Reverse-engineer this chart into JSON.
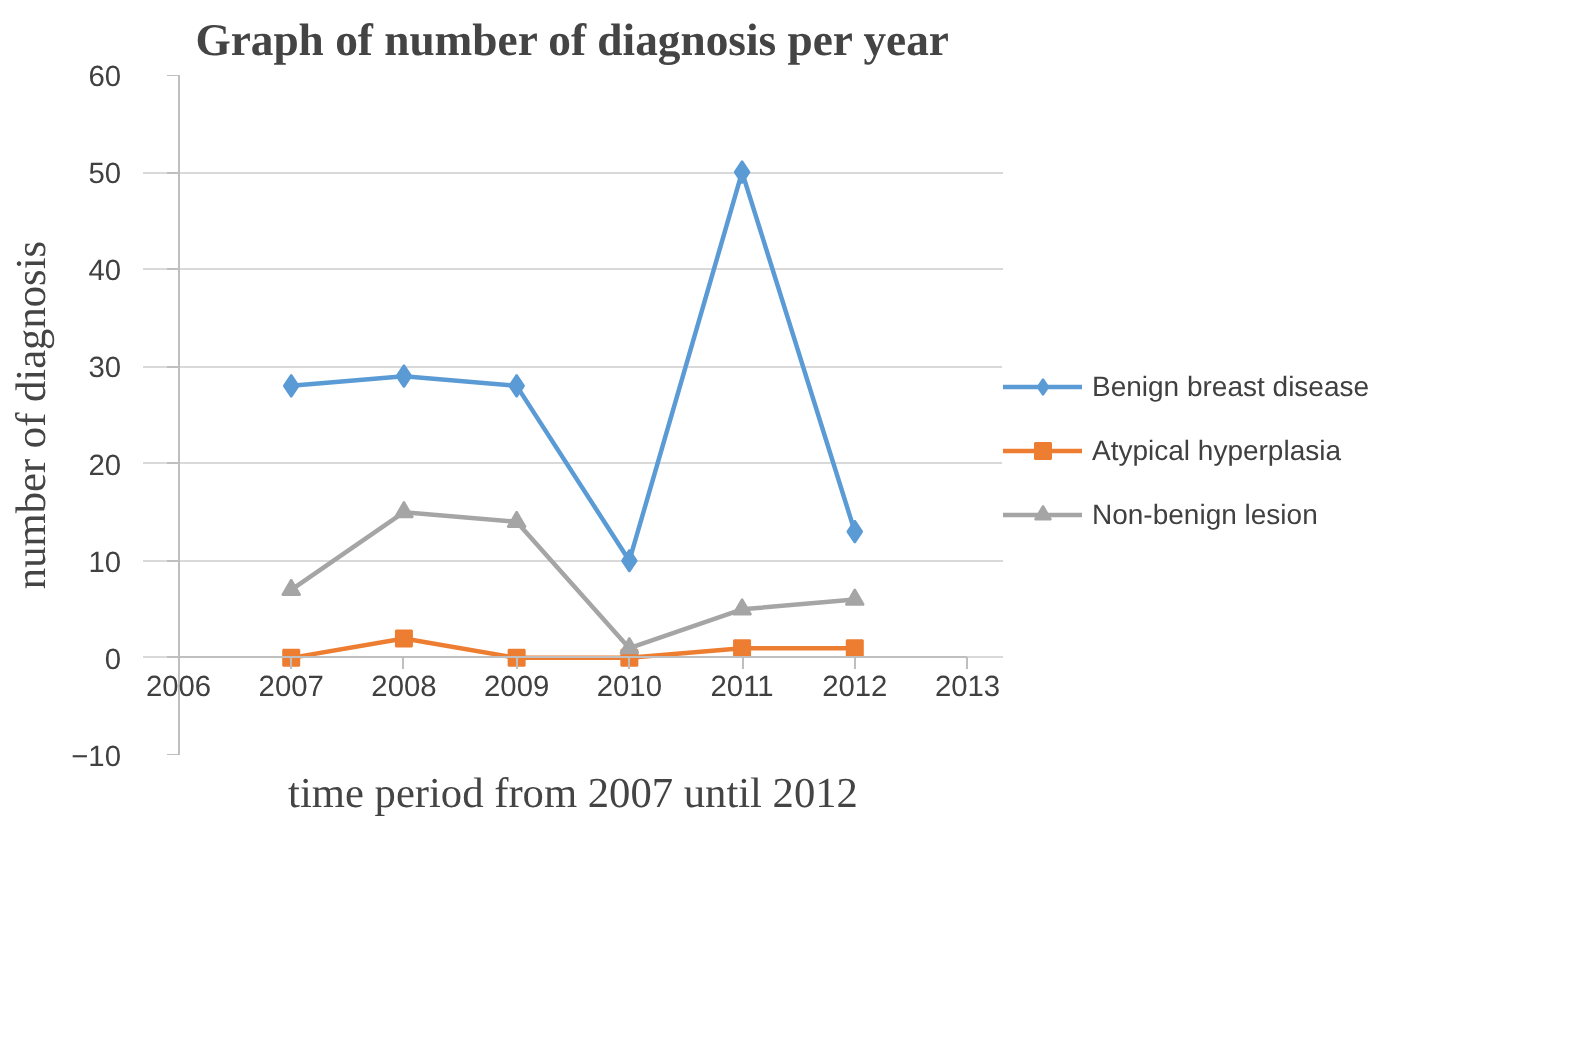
{
  "chart_data": {
    "type": "line",
    "title": "Graph of number of diagnosis per year",
    "xlabel": "time period from 2007 until 2012",
    "ylabel": "number of diagnosis",
    "x": [
      2007,
      2008,
      2009,
      2010,
      2011,
      2012
    ],
    "series": [
      {
        "name": "Benign breast disease",
        "color": "#5b9bd5",
        "marker": "diamond",
        "values": [
          28,
          29,
          28,
          10,
          50,
          13
        ]
      },
      {
        "name": "Atypical hyperplasia",
        "color": "#ed7d31",
        "marker": "square",
        "values": [
          0,
          2,
          0,
          0,
          1,
          1
        ]
      },
      {
        "name": "Non-benign lesion",
        "color": "#a5a5a5",
        "marker": "triangle",
        "values": [
          7,
          15,
          14,
          1,
          5,
          6
        ]
      }
    ],
    "xlim": [
      2006,
      2013
    ],
    "xticks": [
      2006,
      2007,
      2008,
      2009,
      2010,
      2011,
      2012,
      2013
    ],
    "ylim": [
      -10,
      60
    ],
    "yticks": [
      -10,
      0,
      10,
      20,
      30,
      40,
      50,
      60
    ],
    "grid": "y",
    "legend": "right",
    "line_style": "solid"
  }
}
